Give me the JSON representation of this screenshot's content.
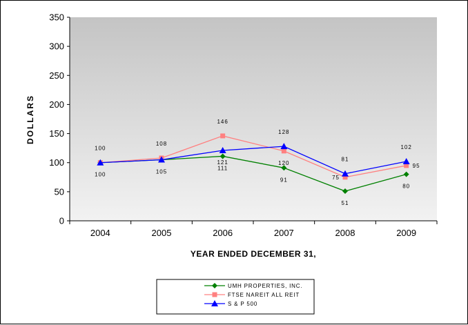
{
  "chart_data": {
    "type": "line",
    "categories": [
      "2004",
      "2005",
      "2006",
      "2007",
      "2008",
      "2009"
    ],
    "xlabel": "YEAR ENDED DECEMBER 31,",
    "ylabel": "DOLLARS",
    "ylim": [
      0,
      350
    ],
    "yticks": [
      0,
      50,
      100,
      150,
      200,
      250,
      300,
      350
    ],
    "grid": false,
    "legend_placement": "bottom",
    "series": [
      {
        "name": "UMH PROPERTIES, INC.",
        "values": [
          100,
          105,
          111,
          91,
          51,
          80
        ],
        "labels": [
          "100",
          "105",
          "111",
          "91",
          "51",
          "80"
        ],
        "label_pos": [
          "below",
          "below",
          "below",
          "below",
          "below",
          "below"
        ],
        "color": "#008000",
        "marker": "diamond"
      },
      {
        "name": "FTSE NAREIT ALL REIT",
        "values": [
          100,
          108,
          146,
          120,
          75,
          95
        ],
        "labels": [
          "100",
          "108",
          "146",
          "120",
          "75",
          "95"
        ],
        "label_pos": [
          "above",
          "above",
          "above",
          "below",
          "left",
          "right"
        ],
        "color": "#ff8080",
        "marker": "square"
      },
      {
        "name": "S & P 500",
        "values": [
          100,
          105,
          121,
          128,
          81,
          102
        ],
        "labels": [
          "",
          "",
          "121",
          "128",
          "81",
          "102"
        ],
        "label_pos": [
          "",
          "",
          "below",
          "above",
          "above",
          "above"
        ],
        "color": "#0000ff",
        "marker": "triangle"
      }
    ],
    "colors": {
      "plot_background": "#c0c0c0",
      "plot_background_light": "#f0f0f0"
    }
  }
}
